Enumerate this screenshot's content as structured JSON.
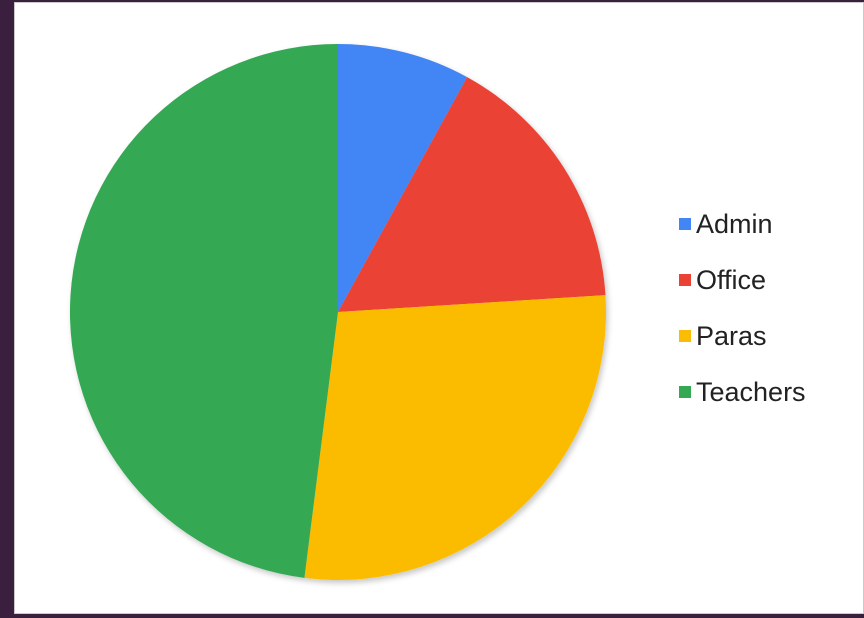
{
  "chart_data": {
    "type": "pie",
    "title": "",
    "legend_position": "right",
    "start_angle": "12 o'clock, clockwise",
    "slices": [
      {
        "label": "Admin",
        "value": 8,
        "color": "#4285f4"
      },
      {
        "label": "Office",
        "value": 16,
        "color": "#ea4335"
      },
      {
        "label": "Paras",
        "value": 28,
        "color": "#fbbc04"
      },
      {
        "label": "Teachers",
        "value": 48,
        "color": "#34a853"
      }
    ]
  }
}
